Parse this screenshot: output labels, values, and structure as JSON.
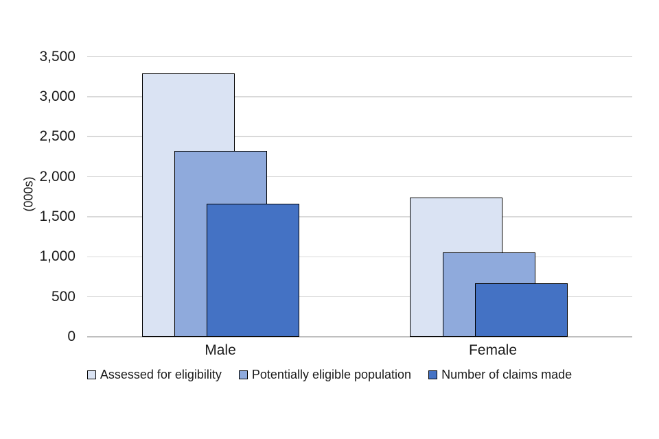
{
  "chart_data": {
    "type": "bar",
    "variant": "overlapping-series",
    "title": "",
    "categories": [
      "Male",
      "Female"
    ],
    "series": [
      {
        "name": "Assessed for eligibility",
        "color": "#dae3f3",
        "values": [
          3290,
          1740
        ]
      },
      {
        "name": "Potentially eligible population",
        "color": "#8faadc",
        "values": [
          2320,
          1050
        ]
      },
      {
        "name": "Number of claims made",
        "color": "#4472c4",
        "values": [
          1660,
          670
        ]
      }
    ],
    "xlabel": "",
    "ylabel": "(000s)",
    "ylim": [
      0,
      3500
    ],
    "ytick_step": 500,
    "ytick_labels": [
      "0",
      "500",
      "1,000",
      "1,500",
      "2,000",
      "2,500",
      "3,000",
      "3,500"
    ],
    "grid": true,
    "legend_position": "bottom",
    "colors": {
      "bar_border": "#000000",
      "gridline": "#d9d9d9",
      "axis_line": "#bfbfbf",
      "text": "#1a1a1a",
      "background": "#ffffff"
    }
  }
}
